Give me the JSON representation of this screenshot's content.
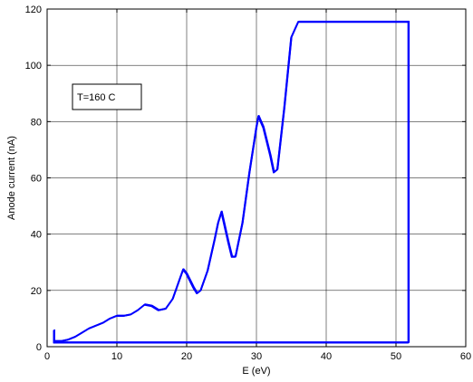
{
  "chart_data": {
    "type": "line",
    "xlabel": "E (eV)",
    "ylabel": "Anode current (nA)",
    "xlim": [
      0,
      60
    ],
    "ylim": [
      0,
      120
    ],
    "xticks": [
      0,
      10,
      20,
      30,
      40,
      50,
      60
    ],
    "yticks": [
      0,
      20,
      40,
      60,
      80,
      100,
      120
    ],
    "grid": true,
    "annotation": "T=160 C",
    "line_color": "#0000ff",
    "series": [
      {
        "x": [
          1,
          2,
          3,
          4,
          5,
          6,
          7,
          8,
          9,
          10,
          11,
          12,
          13,
          14,
          15,
          16,
          17,
          18,
          19,
          19.5,
          20,
          21,
          21.5,
          22,
          23,
          24,
          24.5,
          25,
          26,
          26.5,
          27,
          28,
          29,
          30,
          30.3,
          31,
          32,
          32.5,
          33,
          34,
          35,
          36,
          40,
          45,
          50,
          51.8,
          51.8,
          45,
          40,
          30,
          21,
          15,
          5,
          1,
          1
        ],
        "y": [
          2,
          2,
          2.5,
          3.5,
          5,
          6.5,
          7.5,
          8.5,
          10,
          11,
          11,
          11.5,
          13,
          15,
          14.5,
          13,
          13.5,
          17,
          24,
          27.5,
          26,
          21,
          19,
          20,
          27,
          38,
          44,
          48,
          37,
          32,
          32,
          44,
          62,
          78,
          82,
          78,
          68,
          62,
          63,
          85,
          110,
          115.5,
          115.5,
          115.5,
          115.5,
          115.5,
          1.5,
          1.5,
          1.5,
          1.5,
          1.5,
          1.5,
          1.5,
          1.5,
          6
        ]
      }
    ]
  }
}
